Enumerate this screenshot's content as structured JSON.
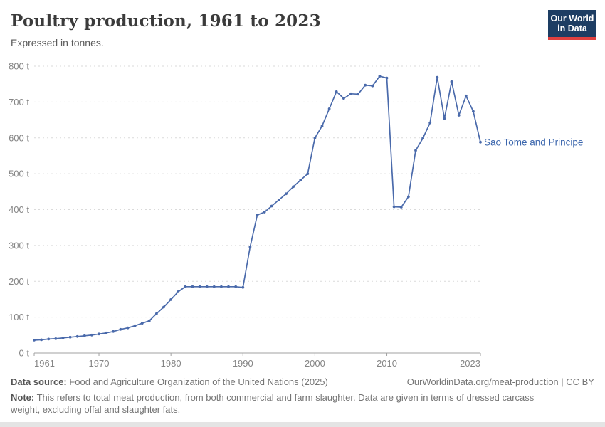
{
  "header": {
    "title": "Poultry production, 1961 to 2023",
    "subtitle": "Expressed in tonnes.",
    "logo": {
      "line1": "Our World",
      "line2": "in Data"
    }
  },
  "chart_data": {
    "type": "line",
    "title": "Poultry production, 1961 to 2023",
    "ylabel": "tonnes",
    "unit": "t",
    "grid": true,
    "legend_position": "end-of-line",
    "xlim": [
      1961,
      2023
    ],
    "ylim": [
      0,
      800
    ],
    "yticks": [
      0,
      100,
      200,
      300,
      400,
      500,
      600,
      700,
      800
    ],
    "xticks": [
      1961,
      1970,
      1980,
      1990,
      2000,
      2010,
      2023
    ],
    "x": [
      1961,
      1962,
      1963,
      1964,
      1965,
      1966,
      1967,
      1968,
      1969,
      1970,
      1971,
      1972,
      1973,
      1974,
      1975,
      1976,
      1977,
      1978,
      1979,
      1980,
      1981,
      1982,
      1983,
      1984,
      1985,
      1986,
      1987,
      1988,
      1989,
      1990,
      1991,
      1992,
      1993,
      1994,
      1995,
      1996,
      1997,
      1998,
      1999,
      2000,
      2001,
      2002,
      2003,
      2004,
      2005,
      2006,
      2007,
      2008,
      2009,
      2010,
      2011,
      2012,
      2013,
      2014,
      2015,
      2016,
      2017,
      2018,
      2019,
      2020,
      2021,
      2022,
      2023
    ],
    "series": [
      {
        "name": "Sao Tome and Principe",
        "color": "#4a6aab",
        "label_color": "#3b66ad",
        "values": [
          36,
          37,
          39,
          40,
          42,
          44,
          46,
          48,
          50,
          53,
          56,
          60,
          66,
          70,
          76,
          83,
          90,
          110,
          128,
          149,
          171,
          185,
          185,
          185,
          185,
          185,
          185,
          185,
          185,
          183,
          296,
          385,
          393,
          410,
          427,
          444,
          464,
          482,
          500,
          600,
          633,
          681,
          729,
          710,
          723,
          722,
          747,
          745,
          772,
          767,
          408,
          407,
          436,
          565,
          599,
          642,
          769,
          654,
          757,
          663,
          717,
          674,
          588
        ]
      }
    ]
  },
  "style": {
    "grid_color": "#dadada",
    "axis_color": "#a1a1a1",
    "tick_text_color": "#858585"
  },
  "footer": {
    "datasource_label": "Data source:",
    "datasource_text": " Food and Agriculture Organization of the United Nations (2025)",
    "link": "OurWorldinData.org/meat-production | CC BY",
    "note_label": "Note:",
    "note_text": " This refers to total meat production, from both commercial and farm slaughter. Data are given in terms of dressed carcass weight, excluding offal and slaughter fats."
  }
}
